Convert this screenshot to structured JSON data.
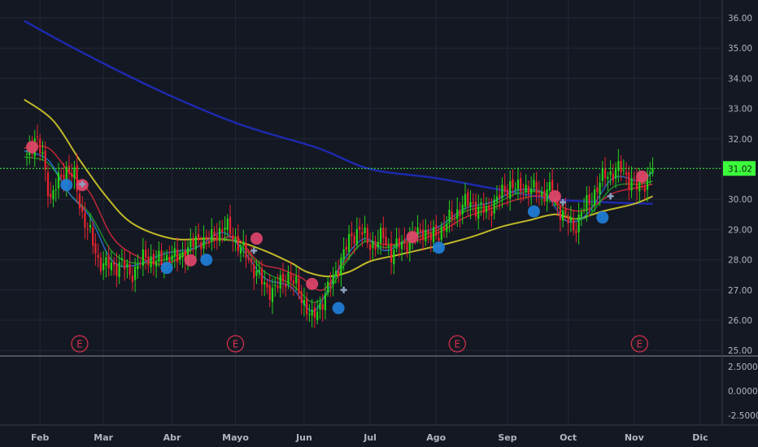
{
  "chart_data": {
    "type": "candlestick",
    "colors": {
      "background": "#141823",
      "grid": "#232734",
      "axis_text": "#b2b5be",
      "candle_up": "#26d21a",
      "candle_down": "#e8242e",
      "ma_200": "#1e2bb8",
      "ma_50": "#c9c12a",
      "ma_20": "#d42a3a",
      "ma_10": "#1f9a2a",
      "ma_5": "#2d6fd0",
      "price_line": "#3cff3c",
      "buy_dot": "#1f7fd9",
      "sell_dot": "#e0456a",
      "earnings_circle": "#d8324c",
      "cross": "#8aa0c0"
    },
    "price_axis": {
      "ticks": [
        "36.00",
        "35.00",
        "34.00",
        "33.00",
        "32.00",
        "30.00",
        "29.00",
        "28.00",
        "27.00",
        "26.00",
        "25.00"
      ],
      "ylim": [
        25,
        36
      ]
    },
    "last_price": {
      "label": "31.02",
      "value": 31.02
    },
    "indicator_axis": {
      "ticks": [
        "2.5000",
        "0.0000",
        "-2.5000"
      ]
    },
    "x_axis": {
      "months": [
        "Feb",
        "Mar",
        "Abr",
        "Mayo",
        "Jun",
        "Jul",
        "Ago",
        "Sep",
        "Oct",
        "Nov",
        "Dic"
      ],
      "month_days": [
        5,
        29,
        55,
        79,
        105,
        130,
        155,
        182,
        205,
        230,
        255
      ]
    },
    "earnings_markers": {
      "label": "E",
      "days": [
        20,
        79,
        163,
        232
      ]
    },
    "ohlc_anchors": [
      [
        0,
        31.5
      ],
      [
        3,
        32.0
      ],
      [
        6,
        31.4
      ],
      [
        9,
        30.0
      ],
      [
        12,
        30.6
      ],
      [
        15,
        31.0
      ],
      [
        18,
        30.7
      ],
      [
        21,
        29.5
      ],
      [
        24,
        28.8
      ],
      [
        27,
        28.0
      ],
      [
        30,
        27.8
      ],
      [
        33,
        27.8
      ],
      [
        36,
        27.9
      ],
      [
        39,
        27.5
      ],
      [
        42,
        27.8
      ],
      [
        45,
        28.1
      ],
      [
        48,
        28.0
      ],
      [
        51,
        27.9
      ],
      [
        54,
        28.2
      ],
      [
        57,
        28.0
      ],
      [
        60,
        28.3
      ],
      [
        63,
        28.5
      ],
      [
        66,
        28.7
      ],
      [
        69,
        28.6
      ],
      [
        72,
        28.9
      ],
      [
        75,
        29.1
      ],
      [
        78,
        28.8
      ],
      [
        81,
        28.4
      ],
      [
        84,
        28.0
      ],
      [
        87,
        27.6
      ],
      [
        90,
        27.1
      ],
      [
        93,
        27.0
      ],
      [
        96,
        27.2
      ],
      [
        99,
        27.5
      ],
      [
        102,
        27.1
      ],
      [
        105,
        26.6
      ],
      [
        108,
        26.0
      ],
      [
        111,
        26.5
      ],
      [
        114,
        27.0
      ],
      [
        117,
        27.6
      ],
      [
        120,
        28.2
      ],
      [
        123,
        28.8
      ],
      [
        126,
        29.0
      ],
      [
        129,
        28.6
      ],
      [
        132,
        28.5
      ],
      [
        135,
        28.8
      ],
      [
        138,
        28.2
      ],
      [
        141,
        28.5
      ],
      [
        144,
        28.6
      ],
      [
        147,
        28.8
      ],
      [
        150,
        29.0
      ],
      [
        153,
        28.7
      ],
      [
        156,
        28.9
      ],
      [
        159,
        29.2
      ],
      [
        162,
        29.5
      ],
      [
        165,
        29.8
      ],
      [
        168,
        29.9
      ],
      [
        171,
        29.7
      ],
      [
        174,
        29.6
      ],
      [
        177,
        29.9
      ],
      [
        180,
        30.2
      ],
      [
        183,
        30.5
      ],
      [
        186,
        30.3
      ],
      [
        189,
        30.4
      ],
      [
        192,
        30.3
      ],
      [
        195,
        30.2
      ],
      [
        198,
        30.3
      ],
      [
        201,
        29.8
      ],
      [
        204,
        29.4
      ],
      [
        207,
        29.0
      ],
      [
        210,
        29.6
      ],
      [
        213,
        29.9
      ],
      [
        216,
        30.4
      ],
      [
        219,
        30.8
      ],
      [
        222,
        30.9
      ],
      [
        225,
        31.0
      ],
      [
        228,
        30.7
      ],
      [
        231,
        30.4
      ],
      [
        234,
        30.6
      ],
      [
        237,
        31.0
      ]
    ],
    "moving_averages": [
      {
        "id": "ma_200",
        "points": [
          [
            -1,
            35.9
          ],
          [
            20,
            34.9
          ],
          [
            50,
            33.6
          ],
          [
            80,
            32.5
          ],
          [
            110,
            31.7
          ],
          [
            130,
            31.0
          ],
          [
            155,
            30.7
          ],
          [
            180,
            30.3
          ],
          [
            200,
            30.0
          ],
          [
            220,
            29.9
          ],
          [
            237,
            29.85
          ]
        ]
      },
      {
        "id": "ma_50",
        "points": [
          [
            -1,
            33.3
          ],
          [
            10,
            32.6
          ],
          [
            20,
            31.3
          ],
          [
            30,
            30.1
          ],
          [
            40,
            29.2
          ],
          [
            55,
            28.7
          ],
          [
            70,
            28.7
          ],
          [
            80,
            28.6
          ],
          [
            90,
            28.3
          ],
          [
            100,
            27.9
          ],
          [
            106,
            27.6
          ],
          [
            114,
            27.45
          ],
          [
            122,
            27.6
          ],
          [
            130,
            27.95
          ],
          [
            140,
            28.15
          ],
          [
            150,
            28.35
          ],
          [
            160,
            28.55
          ],
          [
            170,
            28.8
          ],
          [
            180,
            29.1
          ],
          [
            190,
            29.3
          ],
          [
            200,
            29.5
          ],
          [
            208,
            29.35
          ],
          [
            218,
            29.6
          ],
          [
            230,
            29.85
          ],
          [
            237,
            30.1
          ]
        ]
      },
      {
        "id": "ma_20",
        "points": [
          [
            -1,
            31.7
          ],
          [
            8,
            31.7
          ],
          [
            16,
            30.9
          ],
          [
            24,
            30.2
          ],
          [
            32,
            28.8
          ],
          [
            40,
            28.2
          ],
          [
            52,
            27.85
          ],
          [
            64,
            28.4
          ],
          [
            74,
            28.7
          ],
          [
            80,
            28.7
          ],
          [
            88,
            27.9
          ],
          [
            96,
            27.7
          ],
          [
            104,
            27.4
          ],
          [
            112,
            27.0
          ],
          [
            120,
            27.9
          ],
          [
            128,
            28.6
          ],
          [
            136,
            28.5
          ],
          [
            146,
            28.6
          ],
          [
            156,
            28.9
          ],
          [
            166,
            29.4
          ],
          [
            176,
            29.7
          ],
          [
            186,
            30.0
          ],
          [
            196,
            30.1
          ],
          [
            204,
            29.7
          ],
          [
            212,
            29.65
          ],
          [
            222,
            30.2
          ],
          [
            232,
            30.4
          ],
          [
            237,
            30.5
          ]
        ]
      },
      {
        "id": "ma_10",
        "points": [
          [
            -1,
            31.4
          ],
          [
            8,
            31.2
          ],
          [
            16,
            30.2
          ],
          [
            24,
            29.5
          ],
          [
            32,
            28.3
          ],
          [
            40,
            27.9
          ],
          [
            52,
            28.0
          ],
          [
            64,
            28.4
          ],
          [
            74,
            28.7
          ],
          [
            82,
            28.4
          ],
          [
            90,
            27.6
          ],
          [
            100,
            27.2
          ],
          [
            108,
            26.6
          ],
          [
            114,
            26.9
          ],
          [
            120,
            27.8
          ],
          [
            128,
            28.6
          ],
          [
            136,
            28.4
          ],
          [
            146,
            28.7
          ],
          [
            156,
            29.0
          ],
          [
            166,
            29.6
          ],
          [
            176,
            29.8
          ],
          [
            186,
            30.2
          ],
          [
            196,
            30.2
          ],
          [
            204,
            29.5
          ],
          [
            212,
            29.4
          ],
          [
            222,
            30.4
          ],
          [
            232,
            30.5
          ],
          [
            237,
            30.6
          ]
        ]
      },
      {
        "id": "ma_5",
        "points": [
          [
            -1,
            31.6
          ],
          [
            8,
            31.3
          ],
          [
            16,
            30.2
          ],
          [
            24,
            29.4
          ],
          [
            32,
            28.0
          ],
          [
            40,
            27.8
          ],
          [
            52,
            28.2
          ],
          [
            64,
            28.4
          ],
          [
            74,
            28.9
          ],
          [
            82,
            28.3
          ],
          [
            90,
            27.4
          ],
          [
            100,
            27.1
          ],
          [
            108,
            26.3
          ],
          [
            114,
            27.0
          ],
          [
            120,
            28.0
          ],
          [
            128,
            28.7
          ],
          [
            136,
            28.3
          ],
          [
            146,
            28.8
          ],
          [
            156,
            29.1
          ],
          [
            166,
            29.7
          ],
          [
            176,
            29.9
          ],
          [
            186,
            30.3
          ],
          [
            196,
            30.2
          ],
          [
            204,
            29.3
          ],
          [
            212,
            29.5
          ],
          [
            222,
            30.7
          ],
          [
            232,
            30.6
          ],
          [
            237,
            30.9
          ]
        ]
      }
    ],
    "signals": [
      {
        "kind": "sell",
        "day": 2,
        "price": 31.73
      },
      {
        "kind": "buy",
        "day": 15,
        "price": 30.47
      },
      {
        "kind": "sell",
        "day": 21,
        "price": 30.47
      },
      {
        "kind": "buy",
        "day": 53,
        "price": 27.73
      },
      {
        "kind": "sell",
        "day": 62,
        "price": 27.98
      },
      {
        "kind": "buy",
        "day": 68,
        "price": 28.0
      },
      {
        "kind": "sell",
        "day": 87,
        "price": 28.7
      },
      {
        "kind": "sell",
        "day": 108,
        "price": 27.2
      },
      {
        "kind": "buy",
        "day": 118,
        "price": 26.4
      },
      {
        "kind": "sell",
        "day": 146,
        "price": 28.75
      },
      {
        "kind": "buy",
        "day": 156,
        "price": 28.4
      },
      {
        "kind": "buy",
        "day": 192,
        "price": 29.6
      },
      {
        "kind": "sell",
        "day": 200,
        "price": 30.1
      },
      {
        "kind": "buy",
        "day": 218,
        "price": 29.4
      },
      {
        "kind": "sell",
        "day": 233,
        "price": 30.75
      }
    ],
    "crosses": [
      {
        "day": 21,
        "price": 30.5
      },
      {
        "day": 86,
        "price": 28.3
      },
      {
        "day": 120,
        "price": 27.0
      },
      {
        "day": 203,
        "price": 29.9
      },
      {
        "day": 221,
        "price": 30.1
      }
    ]
  }
}
